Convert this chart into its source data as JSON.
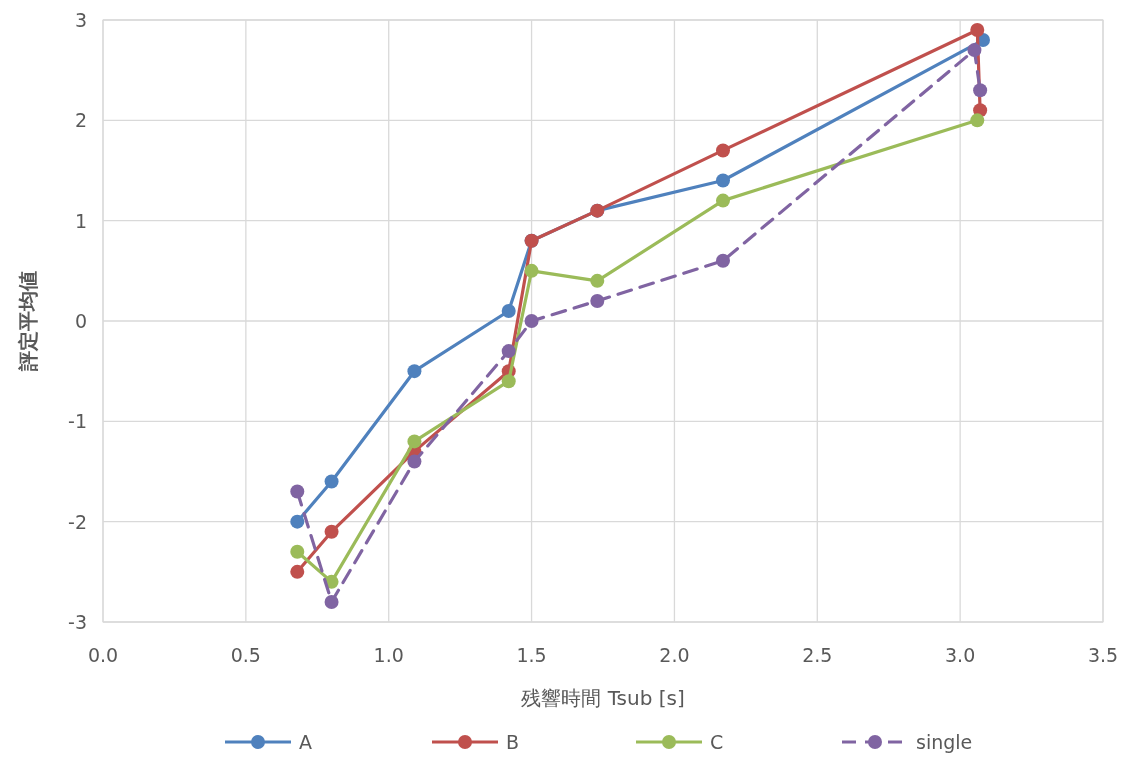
{
  "chart_data": {
    "type": "line",
    "xlabel": "残響時間 Tsub [s]",
    "ylabel": "評定平均値",
    "xlim": [
      0,
      3.5
    ],
    "xticks": [
      {
        "value": 0,
        "label": "0.0"
      },
      0.5,
      {
        "value": 1,
        "label": "1.0"
      },
      1.5,
      {
        "value": 2,
        "label": "2.0"
      },
      2.5,
      {
        "value": 3,
        "label": "3.0"
      },
      3.5
    ],
    "ylim": [
      -3,
      3
    ],
    "yticks": [
      -3,
      -2,
      -1,
      0,
      1,
      2,
      3
    ],
    "grid": true,
    "legend": "bottom",
    "marker": "circle",
    "series": [
      {
        "name": "A",
        "color": "#4f81bd",
        "line_style": "solid",
        "x": [
          0.68,
          0.8,
          1.09,
          1.42,
          1.5,
          1.73,
          2.17,
          3.08
        ],
        "values": [
          -2.0,
          -1.6,
          -0.5,
          0.1,
          0.8,
          1.1,
          1.4,
          2.8
        ]
      },
      {
        "name": "B",
        "color": "#c0504d",
        "line_style": "solid",
        "x": [
          0.68,
          0.8,
          1.09,
          1.42,
          1.5,
          1.73,
          2.17,
          3.06,
          3.07
        ],
        "values": [
          -2.5,
          -2.1,
          -1.3,
          -0.5,
          0.8,
          1.1,
          1.7,
          2.9,
          2.1
        ]
      },
      {
        "name": "C",
        "color": "#9bbb59",
        "line_style": "solid",
        "x": [
          0.68,
          0.8,
          1.09,
          1.42,
          1.5,
          1.73,
          2.17,
          3.06
        ],
        "values": [
          -2.3,
          -2.6,
          -1.2,
          -0.6,
          0.5,
          0.4,
          1.2,
          2.0
        ]
      },
      {
        "name": "single",
        "color": "#8064a2",
        "line_style": "dashed",
        "x": [
          0.68,
          0.8,
          1.09,
          1.42,
          1.5,
          1.73,
          2.17,
          3.05,
          3.07
        ],
        "values": [
          -1.7,
          -2.8,
          -1.4,
          -0.3,
          0.0,
          0.2,
          0.6,
          2.7,
          2.3
        ]
      }
    ]
  }
}
